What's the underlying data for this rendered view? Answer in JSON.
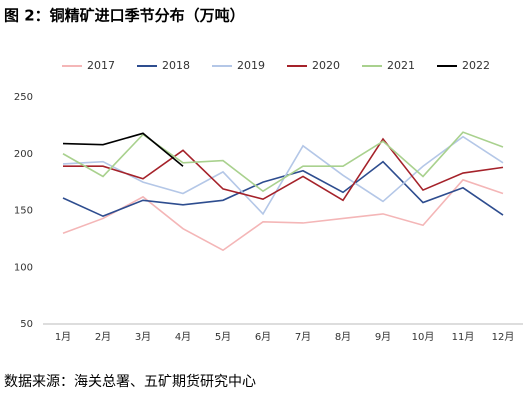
{
  "chart_data": {
    "type": "line",
    "title": "图 2：铜精矿进口季节分布（万吨）",
    "source": "数据来源：海关总署、五矿期货研究中心",
    "categories": [
      "1月",
      "2月",
      "3月",
      "4月",
      "5月",
      "6月",
      "7月",
      "8月",
      "9月",
      "10月",
      "11月",
      "12月"
    ],
    "series": [
      {
        "name": "2017",
        "color": "#f4b6b7",
        "values": [
          130,
          143,
          162,
          134,
          115,
          140,
          139,
          143,
          147,
          137,
          177,
          165
        ]
      },
      {
        "name": "2018",
        "color": "#2e4d8f",
        "values": [
          161,
          145,
          159,
          155,
          159,
          175,
          185,
          166,
          193,
          157,
          170,
          146
        ]
      },
      {
        "name": "2019",
        "color": "#b4c7e7",
        "values": [
          191,
          193,
          175,
          165,
          184,
          147,
          207,
          181,
          158,
          189,
          215,
          192
        ]
      },
      {
        "name": "2020",
        "color": "#a5222a",
        "values": [
          189,
          189,
          178,
          203,
          169,
          160,
          180,
          159,
          213,
          168,
          183,
          188
        ]
      },
      {
        "name": "2021",
        "color": "#a9d18e",
        "values": [
          200,
          180,
          217,
          192,
          194,
          167,
          189,
          189,
          211,
          180,
          219,
          206
        ]
      },
      {
        "name": "2022",
        "color": "#000000",
        "values": [
          209,
          208,
          218,
          189,
          null,
          null,
          null,
          null,
          null,
          null,
          null,
          null
        ]
      }
    ],
    "ylim": [
      50,
      250
    ],
    "yticks": [
      50,
      100,
      150,
      200,
      250
    ],
    "grid": false
  }
}
